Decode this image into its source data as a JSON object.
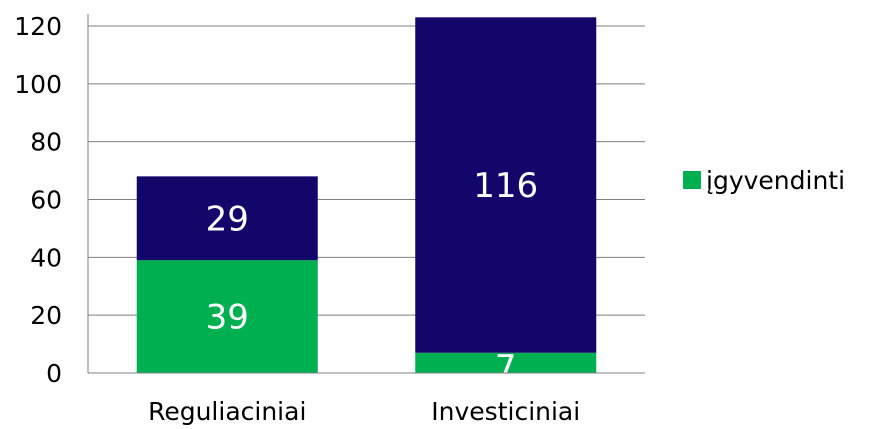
{
  "chart_data": {
    "type": "bar",
    "stacked": true,
    "categories": [
      "Reguliaciniai",
      "Investiciniai"
    ],
    "series": [
      {
        "name": "įgyvendinti",
        "color": "#00b050",
        "values": [
          39,
          7
        ]
      },
      {
        "name": "",
        "color": "#12066a",
        "values": [
          29,
          116
        ]
      }
    ],
    "ylim": [
      0,
      120
    ],
    "yticks": [
      0,
      20,
      40,
      60,
      80,
      100,
      120
    ],
    "grid": true,
    "legend_position": "right",
    "data_labels": true,
    "title": "",
    "xlabel": "",
    "ylabel": ""
  }
}
